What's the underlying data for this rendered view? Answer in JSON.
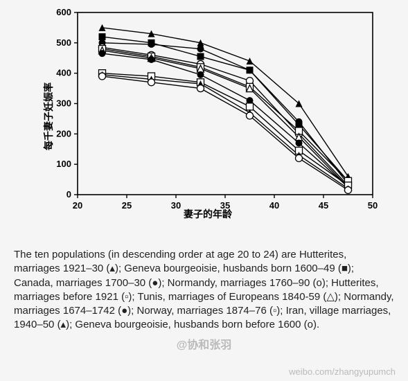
{
  "chart": {
    "type": "line",
    "ylabel": "每千妻子妊娠率",
    "xlabel": "妻子的年龄",
    "xlim": [
      20,
      50
    ],
    "ylim": [
      0,
      600
    ],
    "xtick_step": 5,
    "ytick_step": 100,
    "xticks": [
      20,
      25,
      30,
      35,
      40,
      45,
      50
    ],
    "yticks": [
      0,
      100,
      200,
      300,
      400,
      500,
      600
    ],
    "x_values": [
      22.5,
      27.5,
      32.5,
      37.5,
      42.5,
      47.5
    ],
    "background_color": "#f5f5f5",
    "axis_color": "#000000",
    "line_color": "#000000",
    "line_width": 1.4,
    "tick_fontsize": 13,
    "label_fontsize": 14,
    "marker_size": 5,
    "series": [
      {
        "marker": "triangle-solid",
        "y": [
          550,
          530,
          500,
          440,
          300,
          60
        ]
      },
      {
        "marker": "square-solid",
        "y": [
          520,
          500,
          455,
          410,
          230,
          45
        ]
      },
      {
        "marker": "circle-solid",
        "y": [
          500,
          495,
          480,
          410,
          240,
          35
        ]
      },
      {
        "marker": "circle-open",
        "y": [
          485,
          460,
          430,
          375,
          200,
          30
        ]
      },
      {
        "marker": "square-open",
        "y": [
          480,
          455,
          420,
          355,
          210,
          45
        ]
      },
      {
        "marker": "triangle-open",
        "y": [
          475,
          450,
          415,
          350,
          190,
          25
        ]
      },
      {
        "marker": "circle-solid",
        "y": [
          465,
          445,
          395,
          310,
          170,
          25
        ]
      },
      {
        "marker": "square-open",
        "y": [
          400,
          390,
          370,
          290,
          145,
          30
        ]
      },
      {
        "marker": "triangle-solid",
        "y": [
          395,
          380,
          365,
          270,
          130,
          20
        ]
      },
      {
        "marker": "circle-open",
        "y": [
          390,
          370,
          350,
          260,
          120,
          15
        ]
      }
    ]
  },
  "caption": {
    "text": "The ten populations (in descending order at age 20 to 24) are Hutterites, marriages 1921–30 (▴); Geneva bourgeoisie, husbands born 1600–49 (■); Canada, marriages 1700–30 (●); Normandy, marriages 1760–90 (o); Hutterites, marriages before 1921 (▫); Tunis, marriages of Europeans 1840-59 (△); Normandy, marriages 1674–1742 (●); Norway, marriages 1874–76 (▫); Iran, village marriages, 1940–50 (▴); Geneva bourgeoisie, husbands born before 1600 (o).",
    "fontsize": 15
  },
  "watermarks": {
    "center": "@协和张羽",
    "corner": "weibo.com/zhangyupumch"
  }
}
